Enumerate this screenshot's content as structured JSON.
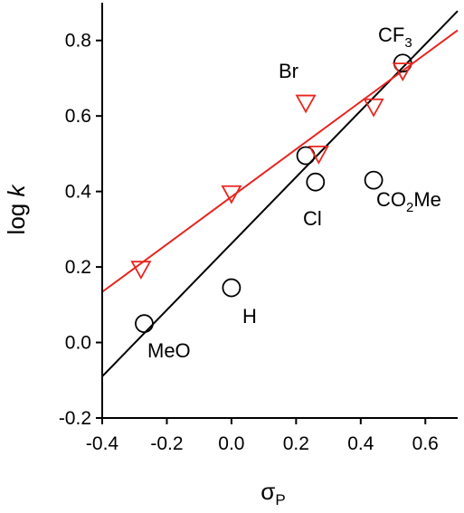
{
  "chart_data": {
    "type": "scatter",
    "xlim": [
      -0.4,
      0.7
    ],
    "ylim": [
      -0.2,
      0.9
    ],
    "xticks": [
      -0.4,
      -0.2,
      0.0,
      0.2,
      0.4,
      0.6
    ],
    "xtick_labels": [
      "-0.4",
      "-0.2",
      "0.0",
      "0.2",
      "0.4",
      "0.6"
    ],
    "yticks": [
      -0.2,
      0.0,
      0.2,
      0.4,
      0.6,
      0.8
    ],
    "ytick_labels": [
      "-0.2",
      "0.0",
      "0.2",
      "0.4",
      "0.6",
      "0.8"
    ],
    "xlabel": {
      "base": "σ",
      "sub": "P"
    },
    "ylabel": {
      "prefix": "log ",
      "italic": "k"
    },
    "grid": false,
    "series": [
      {
        "marker": "circle",
        "color": "#000000",
        "points": [
          {
            "x": -0.27,
            "y": 0.05
          },
          {
            "x": 0.0,
            "y": 0.145
          },
          {
            "x": 0.23,
            "y": 0.495
          },
          {
            "x": 0.26,
            "y": 0.425
          },
          {
            "x": 0.44,
            "y": 0.43
          },
          {
            "x": 0.53,
            "y": 0.74
          }
        ],
        "fit": {
          "slope": 0.88,
          "intercept": 0.2621
        }
      },
      {
        "marker": "triangle-down",
        "color": "#e8251f",
        "points": [
          {
            "x": -0.28,
            "y": 0.195
          },
          {
            "x": 0.0,
            "y": 0.395
          },
          {
            "x": 0.23,
            "y": 0.635
          },
          {
            "x": 0.27,
            "y": 0.5
          },
          {
            "x": 0.44,
            "y": 0.625
          },
          {
            "x": 0.53,
            "y": 0.72
          }
        ],
        "fit": {
          "slope": 0.63,
          "intercept": 0.386
        }
      }
    ],
    "annotations": [
      {
        "text": "MeO"
      },
      {
        "text": "H"
      },
      {
        "text": "Cl"
      },
      {
        "text": "Br"
      },
      {
        "parts": [
          "CO",
          "2",
          "Me"
        ]
      },
      {
        "parts": [
          "CF",
          "3",
          ""
        ]
      }
    ]
  }
}
